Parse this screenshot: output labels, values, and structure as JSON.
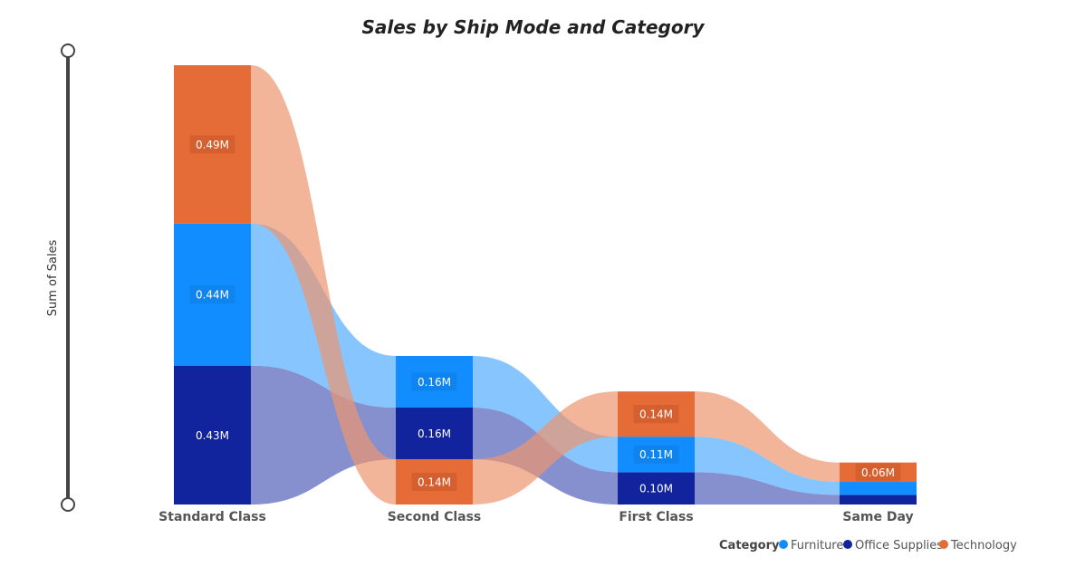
{
  "chart_data": {
    "type": "area",
    "title": "Sales by Ship Mode and Category",
    "ylabel": "Sum of Sales",
    "xlabel": "",
    "categories": [
      "Standard Class",
      "Second Class",
      "First Class",
      "Same Day"
    ],
    "series": [
      {
        "name": "Office Supplies",
        "values": [
          0.43,
          0.16,
          0.1,
          0.03
        ],
        "labels": [
          "0.43M",
          "0.16M",
          "0.10M",
          ""
        ]
      },
      {
        "name": "Furniture",
        "values": [
          0.44,
          0.16,
          0.11,
          0.04
        ],
        "labels": [
          "0.44M",
          "0.16M",
          "0.11M",
          ""
        ]
      },
      {
        "name": "Technology",
        "values": [
          0.49,
          0.14,
          0.14,
          0.06
        ],
        "labels": [
          "0.49M",
          "0.14M",
          "0.14M",
          "0.06M"
        ]
      }
    ],
    "ylim": [
      0,
      1.36
    ],
    "legend": {
      "title": "Category",
      "position": "bottom-right",
      "entries": [
        "Furniture",
        "Office Supplies",
        "Technology"
      ]
    },
    "colors": {
      "Furniture": "#118DFF",
      "Office Supplies": "#12239E",
      "Technology": "#E66C37"
    }
  }
}
